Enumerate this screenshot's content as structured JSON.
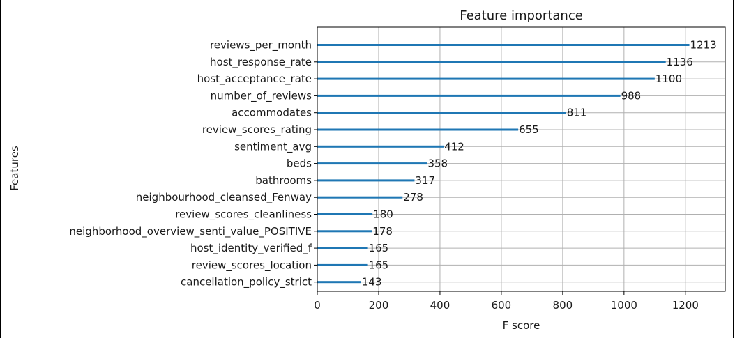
{
  "chart_data": {
    "type": "bar",
    "orientation": "horizontal",
    "title": "Feature importance",
    "xlabel": "F score",
    "ylabel": "Features",
    "xlim": [
      0,
      1330
    ],
    "xticks": [
      0,
      200,
      400,
      600,
      800,
      1000,
      1200
    ],
    "grid": true,
    "bar_color": "#1f77b4",
    "categories": [
      "reviews_per_month",
      "host_response_rate",
      "host_acceptance_rate",
      "number_of_reviews",
      "accommodates",
      "review_scores_rating",
      "sentiment_avg",
      "beds",
      "bathrooms",
      "neighbourhood_cleansed_Fenway",
      "review_scores_cleanliness",
      "neighborhood_overview_senti_value_POSITIVE",
      "host_identity_verified_f",
      "review_scores_location",
      "cancellation_policy_strict"
    ],
    "values": [
      1213,
      1136,
      1100,
      988,
      811,
      655,
      412,
      358,
      317,
      278,
      180,
      178,
      165,
      165,
      143
    ]
  }
}
